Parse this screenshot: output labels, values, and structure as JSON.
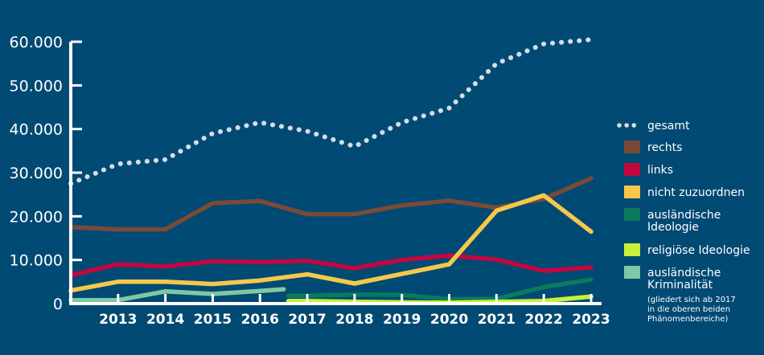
{
  "chart_data": {
    "type": "line",
    "x": [
      2012,
      2013,
      2014,
      2015,
      2016,
      2017,
      2018,
      2019,
      2020,
      2021,
      2022,
      2023
    ],
    "x_tick_labels": [
      "2013",
      "2014",
      "2015",
      "2016",
      "2017",
      "2018",
      "2019",
      "2020",
      "2021",
      "2022",
      "2023"
    ],
    "y_tick_labels": [
      "0",
      "10.000",
      "20.000",
      "30.000",
      "40.000",
      "50.000",
      "60.000"
    ],
    "ylim": [
      0,
      60000
    ],
    "grid": false,
    "legend_position": "right",
    "series": [
      {
        "name": "gesamt",
        "style": "dotted",
        "color": "#d6dde3",
        "x": [
          2012,
          2013,
          2014,
          2015,
          2016,
          2017,
          2018,
          2019,
          2020,
          2021,
          2022,
          2023
        ],
        "values": [
          27500,
          32000,
          33000,
          39000,
          41500,
          39500,
          36000,
          41500,
          44800,
          55000,
          59500,
          60500
        ]
      },
      {
        "name": "rechts",
        "color": "#7a4a37",
        "x": [
          2012,
          2013,
          2014,
          2015,
          2016,
          2017,
          2018,
          2019,
          2020,
          2021,
          2022,
          2023
        ],
        "values": [
          17500,
          17000,
          17000,
          23000,
          23500,
          20500,
          20500,
          22500,
          23600,
          22000,
          24000,
          28700
        ]
      },
      {
        "name": "links",
        "color": "#c3073f",
        "x": [
          2012,
          2013,
          2014,
          2015,
          2016,
          2017,
          2018,
          2019,
          2020,
          2021,
          2022,
          2023
        ],
        "values": [
          6500,
          9000,
          8500,
          9700,
          9500,
          9800,
          8100,
          10000,
          11000,
          10100,
          7500,
          8300
        ]
      },
      {
        "name": "nicht zuzuordnen",
        "color": "#f5c84b",
        "x": [
          2012,
          2013,
          2014,
          2015,
          2016,
          2017,
          2018,
          2019,
          2020,
          2021,
          2022,
          2023
        ],
        "values": [
          3000,
          5000,
          5000,
          4500,
          5300,
          6700,
          4600,
          6800,
          9000,
          21300,
          24800,
          16500
        ]
      },
      {
        "name": "ausländische Ideologie",
        "color": "#0a7a5e",
        "x": [
          2016.6,
          2017,
          2018,
          2019,
          2020,
          2021,
          2022,
          2023
        ],
        "values": [
          1800,
          1800,
          2100,
          2000,
          1000,
          1100,
          3800,
          5500
        ]
      },
      {
        "name": "religiöse Ideologie",
        "color": "#c8f03c",
        "x": [
          2016.6,
          2017,
          2018,
          2019,
          2020,
          2021,
          2022,
          2023
        ],
        "values": [
          600,
          600,
          400,
          300,
          200,
          400,
          600,
          1600
        ]
      },
      {
        "name": "ausländische Kriminalität",
        "color": "#7ec9a5",
        "x": [
          2012,
          2013,
          2014,
          2015,
          2016,
          2016.5
        ],
        "values": [
          800,
          800,
          2800,
          2200,
          2900,
          3300
        ]
      }
    ],
    "legend_note": [
      "(gliedert sich ab 2017",
      "in die oberen beiden",
      "Phänomenbereiche)"
    ]
  }
}
